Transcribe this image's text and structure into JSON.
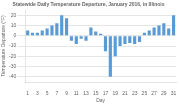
{
  "chart_data": {
    "type": "bar",
    "title": "Statewide Daily Temperature Departure, January 2016, in Illinois",
    "xlabel": "Day",
    "ylabel": "Temperature Departure (°F)",
    "x": [
      1,
      2,
      3,
      4,
      5,
      6,
      7,
      8,
      9,
      10,
      11,
      12,
      13,
      14,
      15,
      16,
      17,
      18,
      19,
      20,
      21,
      22,
      23,
      24,
      25,
      26,
      27,
      28,
      29,
      30,
      31
    ],
    "values": [
      5,
      3,
      3,
      5,
      7,
      10,
      12,
      20,
      17,
      -5,
      -8,
      -3,
      -5,
      8,
      4,
      2,
      -15,
      -40,
      -20,
      -10,
      -8,
      -7,
      -8,
      -6,
      3,
      5,
      8,
      10,
      12,
      7,
      20
    ],
    "color": "#5b9bd5",
    "xlim": [
      0.5,
      31.5
    ],
    "xticks": [
      1,
      3,
      5,
      7,
      9,
      11,
      13,
      15,
      17,
      19,
      21,
      23,
      25,
      27,
      29,
      31
    ],
    "ylim": [
      -45,
      25
    ],
    "yticks": [
      -40,
      -30,
      -20,
      -10,
      0,
      10,
      20
    ],
    "grid": true
  }
}
